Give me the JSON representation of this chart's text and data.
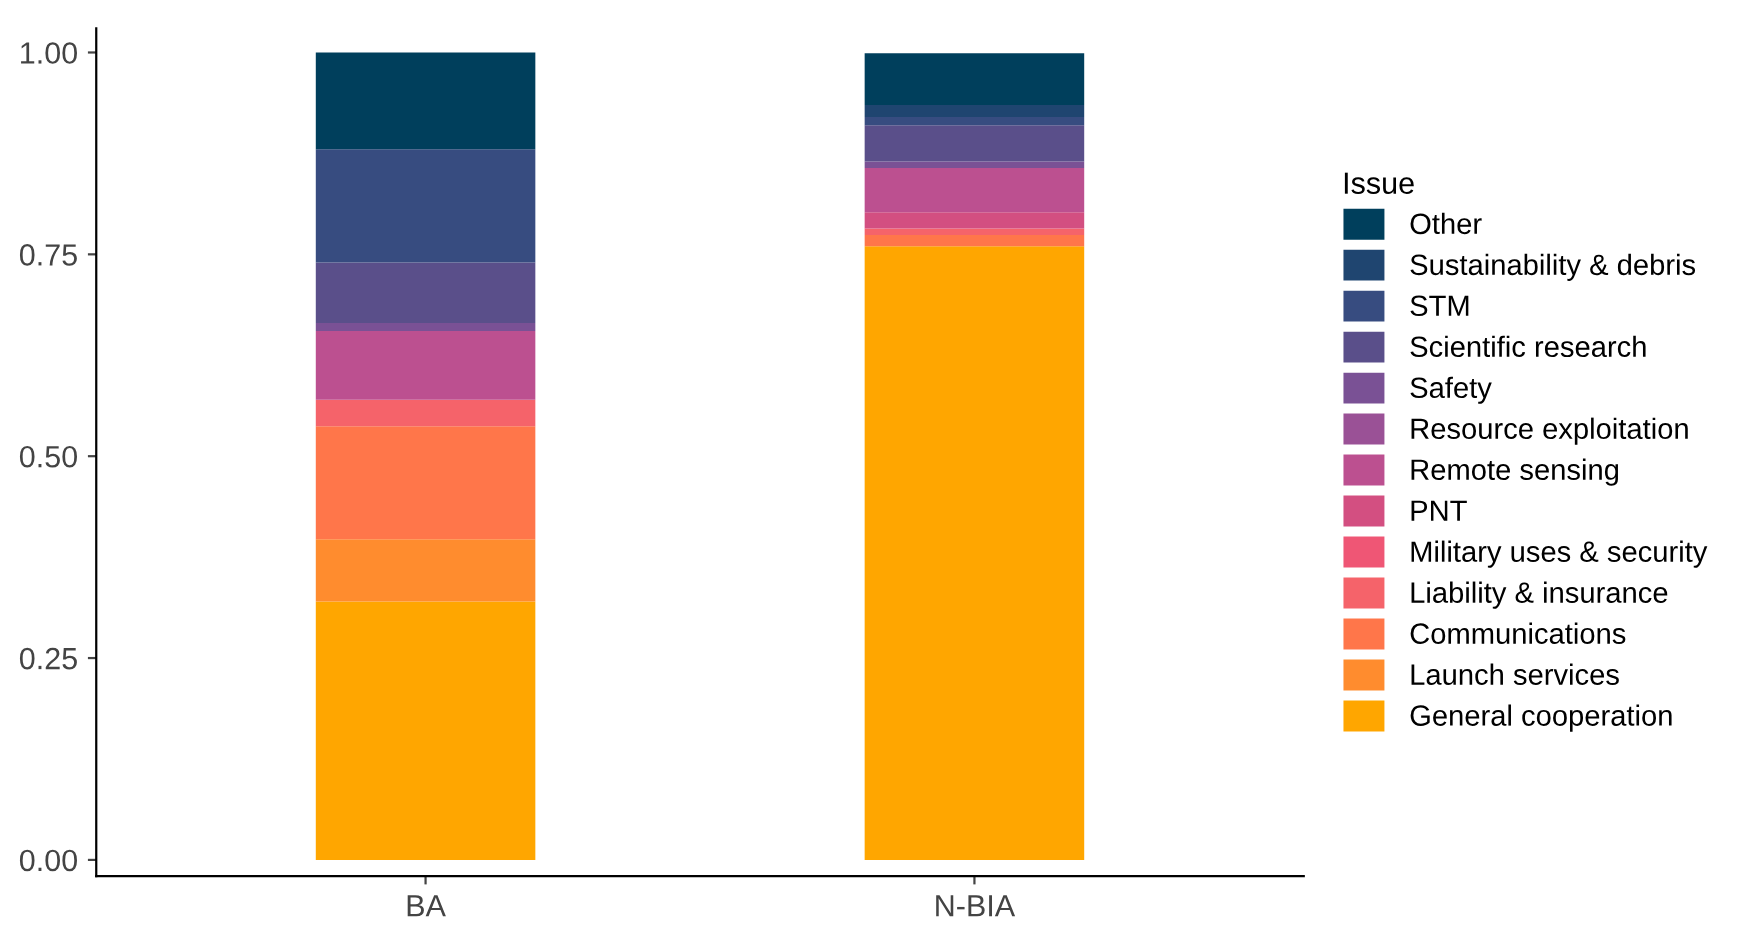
{
  "chart_data": {
    "type": "bar",
    "stacked": true,
    "categories": [
      "BA",
      "N-BIA"
    ],
    "legend_title": "Issue",
    "legend": "right",
    "grid": false,
    "ylim": [
      -0.02,
      1.03
    ],
    "yticks": [
      {
        "value": 0,
        "label": "0.00"
      },
      {
        "value": 0.25,
        "label": "0.25"
      },
      {
        "value": 0.5,
        "label": "0.50"
      },
      {
        "value": 0.75,
        "label": "0.75"
      },
      {
        "value": 1,
        "label": "1.00"
      }
    ],
    "series": [
      {
        "name": "General cooperation",
        "color": "#ffa600",
        "values": [
          0.32,
          0.76
        ]
      },
      {
        "name": "Launch services",
        "color": "#ff8c2e",
        "values": [
          0.077,
          0.0
        ]
      },
      {
        "name": "Communications",
        "color": "#ff764a",
        "values": [
          0.14,
          0.014
        ]
      },
      {
        "name": "Liability & insurance",
        "color": "#f5636a",
        "values": [
          0.033,
          0.008
        ]
      },
      {
        "name": "Military uses & security",
        "color": "#ef5675",
        "values": [
          0.0,
          0.0
        ]
      },
      {
        "name": "PNT",
        "color": "#d34f81",
        "values": [
          0.0,
          0.02
        ]
      },
      {
        "name": "Remote sensing",
        "color": "#bc5090",
        "values": [
          0.085,
          0.055
        ]
      },
      {
        "name": "Resource exploitation",
        "color": "#9a5196",
        "values": [
          0.0,
          0.0
        ]
      },
      {
        "name": "Safety",
        "color": "#7a5195",
        "values": [
          0.01,
          0.008
        ]
      },
      {
        "name": "Scientific research",
        "color": "#5a4f8a",
        "values": [
          0.075,
          0.045
        ]
      },
      {
        "name": "STM",
        "color": "#374c80",
        "values": [
          0.14,
          0.01
        ]
      },
      {
        "name": "Sustainability & debris",
        "color": "#1f4570",
        "values": [
          0.0,
          0.015
        ]
      },
      {
        "name": "Other",
        "color": "#003f5c",
        "values": [
          0.12,
          0.064
        ]
      }
    ]
  }
}
